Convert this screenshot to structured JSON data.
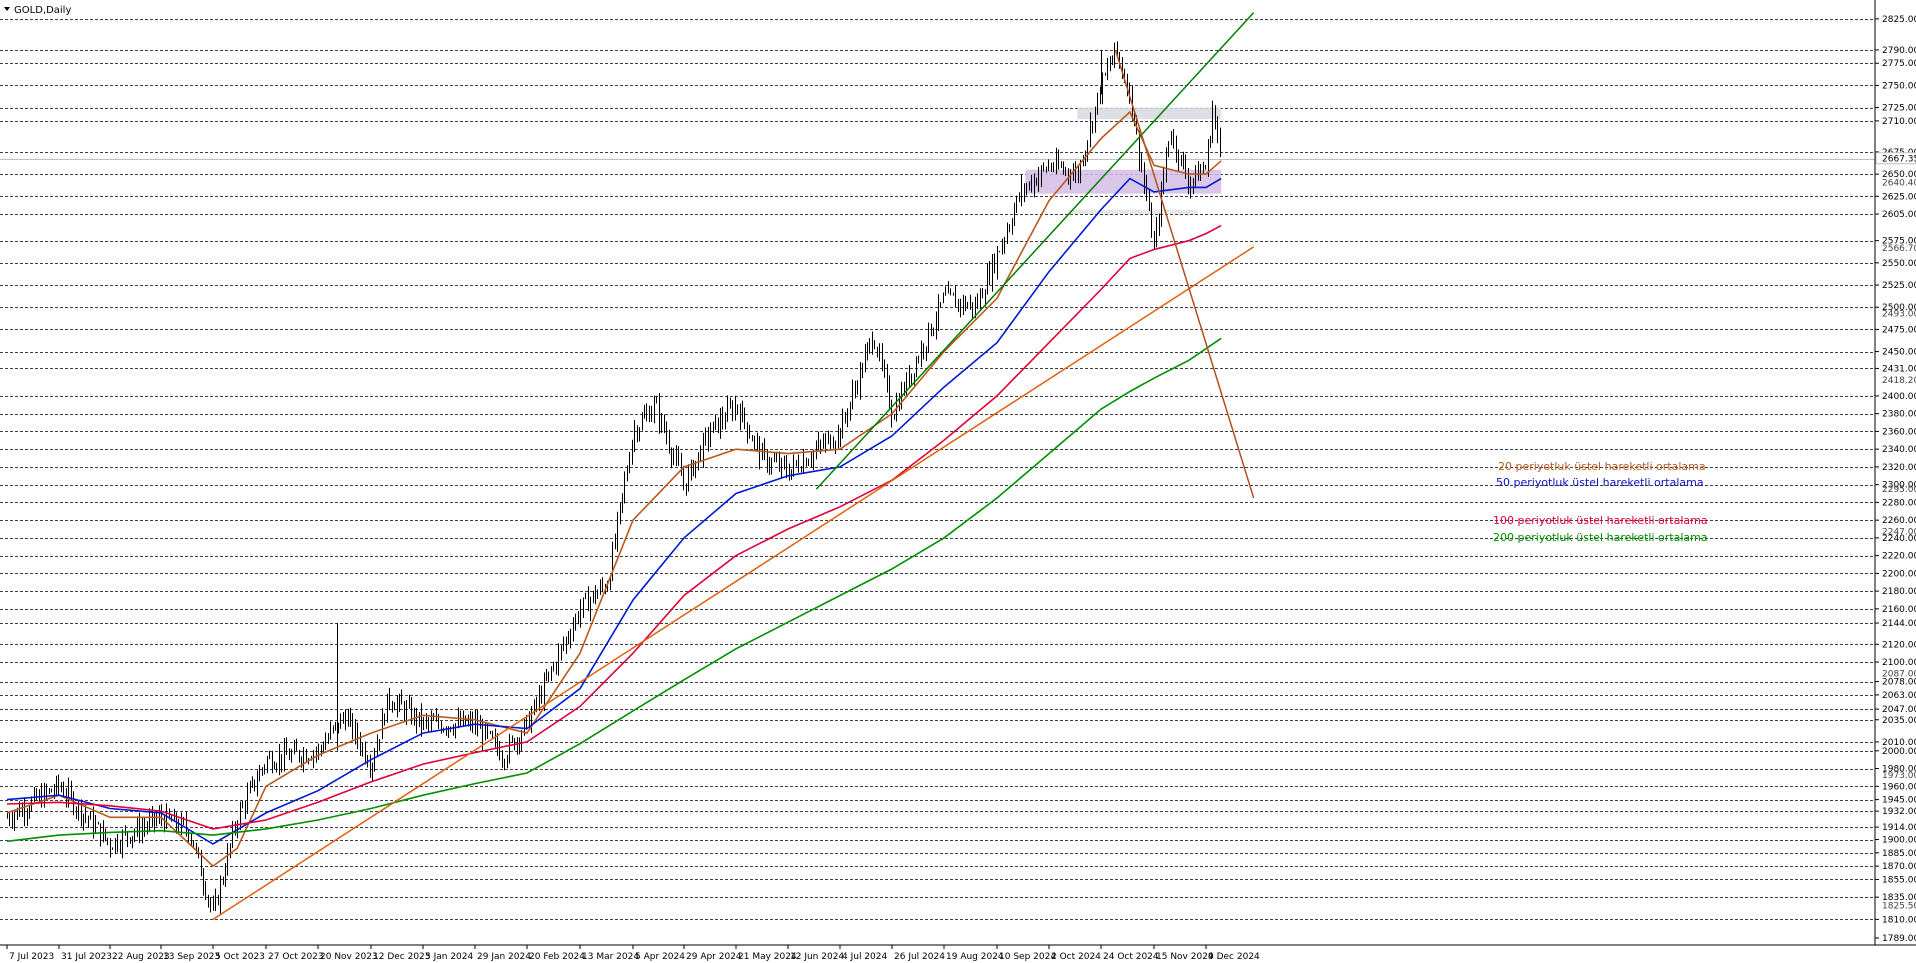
{
  "chart_data": {
    "type": "line",
    "title": "GOLD,Daily",
    "ylim": [
      1789,
      2835
    ],
    "grid": false,
    "y_levels": [
      2825,
      2790,
      2775,
      2750,
      2725,
      2710,
      2675,
      2650,
      2625,
      2605,
      2575,
      2550,
      2525,
      2500,
      2475,
      2450,
      2431,
      2400,
      2380,
      2360,
      2340,
      2320,
      2300,
      2280,
      2260,
      2240,
      2220,
      2200,
      2180,
      2160,
      2144,
      2120,
      2100,
      2078,
      2063,
      2047,
      2035,
      2010,
      2000,
      1980,
      1960,
      1945,
      1932,
      1914,
      1900,
      1885,
      1870,
      1855,
      1835,
      1810
    ],
    "y_ticks": [
      {
        "value": 2825,
        "label": "2825.00"
      },
      {
        "value": 2790,
        "label": "2790.00"
      },
      {
        "value": 2775,
        "label": "2775.00"
      },
      {
        "value": 2750,
        "label": "2750.00"
      },
      {
        "value": 2725,
        "label": "2725.00"
      },
      {
        "value": 2710,
        "label": "2710.00"
      },
      {
        "value": 2675,
        "label": "2675.00"
      },
      {
        "value": 2650,
        "label": "2650.00"
      },
      {
        "value": 2625,
        "label": "2625.00"
      },
      {
        "value": 2605,
        "label": "2605.00"
      },
      {
        "value": 2575,
        "label": "2575.00"
      },
      {
        "value": 2550,
        "label": "2550.00"
      },
      {
        "value": 2525,
        "label": "2525.00"
      },
      {
        "value": 2500,
        "label": "2500.00"
      },
      {
        "value": 2475,
        "label": "2475.00"
      },
      {
        "value": 2450,
        "label": "2450.00"
      },
      {
        "value": 2431,
        "label": "2431.00"
      },
      {
        "value": 2400,
        "label": "2400.00"
      },
      {
        "value": 2380,
        "label": "2380.00"
      },
      {
        "value": 2360,
        "label": "2360.00"
      },
      {
        "value": 2340,
        "label": "2340.00"
      },
      {
        "value": 2320,
        "label": "2320.00"
      },
      {
        "value": 2300,
        "label": "2300.00"
      },
      {
        "value": 2280,
        "label": "2280.00"
      },
      {
        "value": 2260,
        "label": "2260.00"
      },
      {
        "value": 2240,
        "label": "2240.00"
      },
      {
        "value": 2220,
        "label": "2220.00"
      },
      {
        "value": 2200,
        "label": "2200.00"
      },
      {
        "value": 2180,
        "label": "2180.00"
      },
      {
        "value": 2160,
        "label": "2160.00"
      },
      {
        "value": 2144,
        "label": "2144.00"
      },
      {
        "value": 2120,
        "label": "2120.00"
      },
      {
        "value": 2100,
        "label": "2100.00"
      },
      {
        "value": 2078,
        "label": "2078.00"
      },
      {
        "value": 2063,
        "label": "2063.00"
      },
      {
        "value": 2047,
        "label": "2047.00"
      },
      {
        "value": 2035,
        "label": "2035.00"
      },
      {
        "value": 2010,
        "label": "2010.00"
      },
      {
        "value": 2000,
        "label": "2000.00"
      },
      {
        "value": 1980,
        "label": "1980.00"
      },
      {
        "value": 1960,
        "label": "1960.00"
      },
      {
        "value": 1945,
        "label": "1945.00"
      },
      {
        "value": 1932,
        "label": "1932.00"
      },
      {
        "value": 1914,
        "label": "1914.00"
      },
      {
        "value": 1900,
        "label": "1900.00"
      },
      {
        "value": 1885,
        "label": "1885.00"
      },
      {
        "value": 1870,
        "label": "1870.00"
      },
      {
        "value": 1855,
        "label": "1855.00"
      },
      {
        "value": 1835,
        "label": "1835.00"
      },
      {
        "value": 1810,
        "label": "1810.00"
      },
      {
        "value": 1789,
        "label": "1789.00"
      }
    ],
    "y_small_labels": [
      {
        "value": 2667.35,
        "label": "2667.35"
      },
      {
        "value": 2640.4,
        "label": "2640.40"
      },
      {
        "value": 2566.7,
        "label": "2566.70"
      },
      {
        "value": 2493.0,
        "label": "2493.00"
      },
      {
        "value": 2418.2,
        "label": "2418.20"
      },
      {
        "value": 2295.0,
        "label": "2295.00"
      },
      {
        "value": 2247.0,
        "label": "2247.00"
      },
      {
        "value": 2087.0,
        "label": "2087.00"
      },
      {
        "value": 1973.0,
        "label": "1973.00"
      },
      {
        "value": 1825.5,
        "label": "1825.50"
      }
    ],
    "current_price": {
      "value": 2667.35,
      "label": "2667.35"
    },
    "x_ticks": [
      "7 Jul 2023",
      "31 Jul 2023",
      "22 Aug 2023",
      "13 Sep 2023",
      "5 Oct 2023",
      "27 Oct 2023",
      "20 Nov 2023",
      "12 Dec 2023",
      "5 Jan 2024",
      "29 Jan 2024",
      "20 Feb 2024",
      "13 Mar 2024",
      "5 Apr 2024",
      "29 Apr 2024",
      "21 May 2024",
      "12 Jun 2024",
      "4 Jul 2024",
      "26 Jul 2024",
      "19 Aug 2024",
      "10 Sep 2024",
      "2 Oct 2024",
      "24 Oct 2024",
      "15 Nov 2024",
      "9 Dec 2024"
    ],
    "price_path": [
      [
        "7 Jul 2023",
        1925
      ],
      [
        "31 Jul 2023",
        1960
      ],
      [
        "22 Aug 2023",
        1895
      ],
      [
        "13 Sep 2023",
        1925
      ],
      [
        "25 Sep 2023",
        1910
      ],
      [
        "5 Oct 2023",
        1815
      ],
      [
        "15 Oct 2023",
        1925
      ],
      [
        "27 Oct 2023",
        1990
      ],
      [
        "20 Nov 2023",
        2000
      ],
      [
        "1 Dec 2023",
        2040
      ],
      [
        "12 Dec 2023",
        1985
      ],
      [
        "20 Dec 2023",
        2060
      ],
      [
        "5 Jan 2024",
        2030
      ],
      [
        "29 Jan 2024",
        2030
      ],
      [
        "10 Feb 2024",
        1995
      ],
      [
        "20 Feb 2024",
        2030
      ],
      [
        "1 Mar 2024",
        2090
      ],
      [
        "13 Mar 2024",
        2160
      ],
      [
        "25 Mar 2024",
        2190
      ],
      [
        "5 Apr 2024",
        2360
      ],
      [
        "15 Apr 2024",
        2390
      ],
      [
        "29 Apr 2024",
        2300
      ],
      [
        "10 May 2024",
        2360
      ],
      [
        "21 May 2024",
        2390
      ],
      [
        "1 Jun 2024",
        2330
      ],
      [
        "12 Jun 2024",
        2315
      ],
      [
        "4 Jul 2024",
        2360
      ],
      [
        "18 Jul 2024",
        2470
      ],
      [
        "26 Jul 2024",
        2380
      ],
      [
        "19 Aug 2024",
        2510
      ],
      [
        "1 Sep 2024",
        2500
      ],
      [
        "10 Sep 2024",
        2560
      ],
      [
        "20 Sep 2024",
        2630
      ],
      [
        "2 Oct 2024",
        2660
      ],
      [
        "14 Oct 2024",
        2650
      ],
      [
        "24 Oct 2024",
        2750
      ],
      [
        "30 Oct 2024",
        2790
      ],
      [
        "5 Nov 2024",
        2740
      ],
      [
        "15 Nov 2024",
        2565
      ],
      [
        "22 Nov 2024",
        2700
      ],
      [
        "1 Dec 2024",
        2640
      ],
      [
        "9 Dec 2024",
        2660
      ],
      [
        "12 Dec 2024",
        2725
      ],
      [
        "16 Dec 2024",
        2660
      ]
    ],
    "series": [
      {
        "name": "20 periyotluk üstel hareketli ortalama",
        "color": "#b85a1e",
        "values": [
          [
            "7 Jul 2023",
            1930
          ],
          [
            "31 Jul 2023",
            1950
          ],
          [
            "22 Aug 2023",
            1925
          ],
          [
            "13 Sep 2023",
            1925
          ],
          [
            "5 Oct 2023",
            1870
          ],
          [
            "15 Oct 2023",
            1890
          ],
          [
            "27 Oct 2023",
            1960
          ],
          [
            "20 Nov 2023",
            1995
          ],
          [
            "12 Dec 2023",
            2020
          ],
          [
            "5 Jan 2024",
            2040
          ],
          [
            "29 Jan 2024",
            2035
          ],
          [
            "20 Feb 2024",
            2020
          ],
          [
            "13 Mar 2024",
            2110
          ],
          [
            "5 Apr 2024",
            2260
          ],
          [
            "29 Apr 2024",
            2320
          ],
          [
            "21 May 2024",
            2340
          ],
          [
            "12 Jun 2024",
            2335
          ],
          [
            "4 Jul 2024",
            2340
          ],
          [
            "26 Jul 2024",
            2380
          ],
          [
            "19 Aug 2024",
            2450
          ],
          [
            "10 Sep 2024",
            2510
          ],
          [
            "2 Oct 2024",
            2620
          ],
          [
            "24 Oct 2024",
            2690
          ],
          [
            "5 Nov 2024",
            2720
          ],
          [
            "15 Nov 2024",
            2660
          ],
          [
            "1 Dec 2024",
            2650
          ],
          [
            "9 Dec 2024",
            2650
          ],
          [
            "16 Dec 2024",
            2665
          ]
        ]
      },
      {
        "name": "50 periyotluk üstel hareketli ortalama",
        "color": "#0018d8",
        "values": [
          [
            "7 Jul 2023",
            1945
          ],
          [
            "31 Jul 2023",
            1950
          ],
          [
            "22 Aug 2023",
            1935
          ],
          [
            "13 Sep 2023",
            1930
          ],
          [
            "5 Oct 2023",
            1895
          ],
          [
            "27 Oct 2023",
            1930
          ],
          [
            "20 Nov 2023",
            1955
          ],
          [
            "12 Dec 2023",
            1990
          ],
          [
            "5 Jan 2024",
            2020
          ],
          [
            "29 Jan 2024",
            2030
          ],
          [
            "20 Feb 2024",
            2025
          ],
          [
            "13 Mar 2024",
            2070
          ],
          [
            "5 Apr 2024",
            2170
          ],
          [
            "29 Apr 2024",
            2240
          ],
          [
            "21 May 2024",
            2290
          ],
          [
            "12 Jun 2024",
            2310
          ],
          [
            "4 Jul 2024",
            2320
          ],
          [
            "26 Jul 2024",
            2355
          ],
          [
            "19 Aug 2024",
            2410
          ],
          [
            "10 Sep 2024",
            2460
          ],
          [
            "2 Oct 2024",
            2540
          ],
          [
            "24 Oct 2024",
            2610
          ],
          [
            "5 Nov 2024",
            2645
          ],
          [
            "15 Nov 2024",
            2630
          ],
          [
            "1 Dec 2024",
            2635
          ],
          [
            "9 Dec 2024",
            2635
          ],
          [
            "16 Dec 2024",
            2645
          ]
        ]
      },
      {
        "name": "100 periyotluk üstel hareketli ortalama",
        "color": "#e00038",
        "values": [
          [
            "7 Jul 2023",
            1940
          ],
          [
            "31 Jul 2023",
            1942
          ],
          [
            "22 Aug 2023",
            1938
          ],
          [
            "13 Sep 2023",
            1932
          ],
          [
            "5 Oct 2023",
            1912
          ],
          [
            "27 Oct 2023",
            1922
          ],
          [
            "20 Nov 2023",
            1942
          ],
          [
            "12 Dec 2023",
            1965
          ],
          [
            "5 Jan 2024",
            1985
          ],
          [
            "29 Jan 2024",
            1998
          ],
          [
            "20 Feb 2024",
            2010
          ],
          [
            "13 Mar 2024",
            2050
          ],
          [
            "5 Apr 2024",
            2110
          ],
          [
            "29 Apr 2024",
            2175
          ],
          [
            "21 May 2024",
            2220
          ],
          [
            "12 Jun 2024",
            2250
          ],
          [
            "4 Jul 2024",
            2275
          ],
          [
            "26 Jul 2024",
            2305
          ],
          [
            "19 Aug 2024",
            2350
          ],
          [
            "10 Sep 2024",
            2400
          ],
          [
            "2 Oct 2024",
            2460
          ],
          [
            "24 Oct 2024",
            2520
          ],
          [
            "5 Nov 2024",
            2555
          ],
          [
            "15 Nov 2024",
            2565
          ],
          [
            "1 Dec 2024",
            2575
          ],
          [
            "9 Dec 2024",
            2583
          ],
          [
            "16 Dec 2024",
            2592
          ]
        ]
      },
      {
        "name": "200 periyotluk üstel hareketli ortalama",
        "color": "#009000",
        "values": [
          [
            "7 Jul 2023",
            1898
          ],
          [
            "31 Jul 2023",
            1905
          ],
          [
            "22 Aug 2023",
            1908
          ],
          [
            "13 Sep 2023",
            1910
          ],
          [
            "5 Oct 2023",
            1905
          ],
          [
            "27 Oct 2023",
            1912
          ],
          [
            "20 Nov 2023",
            1922
          ],
          [
            "12 Dec 2023",
            1935
          ],
          [
            "5 Jan 2024",
            1950
          ],
          [
            "29 Jan 2024",
            1963
          ],
          [
            "20 Feb 2024",
            1975
          ],
          [
            "13 Mar 2024",
            2008
          ],
          [
            "5 Apr 2024",
            2045
          ],
          [
            "29 Apr 2024",
            2080
          ],
          [
            "21 May 2024",
            2115
          ],
          [
            "12 Jun 2024",
            2145
          ],
          [
            "4 Jul 2024",
            2175
          ],
          [
            "26 Jul 2024",
            2205
          ],
          [
            "19 Aug 2024",
            2240
          ],
          [
            "10 Sep 2024",
            2285
          ],
          [
            "2 Oct 2024",
            2335
          ],
          [
            "24 Oct 2024",
            2385
          ],
          [
            "5 Nov 2024",
            2405
          ],
          [
            "15 Nov 2024",
            2420
          ],
          [
            "1 Dec 2024",
            2440
          ],
          [
            "16 Dec 2024",
            2465
          ]
        ]
      }
    ],
    "trendlines": [
      {
        "name": "long-term-support-trendline",
        "color": "#e06010",
        "from": [
          "5 Oct 2023",
          1810
        ],
        "to": [
          "31 Dec 2024",
          2568
        ]
      },
      {
        "name": "medium-term-support-trendline",
        "color": "#008000",
        "from": [
          "24 Jun 2024",
          2295
        ],
        "to": [
          "31 Dec 2024",
          2832
        ]
      },
      {
        "name": "downtrend-resistance-line",
        "color": "#b05020",
        "from": [
          "30 Oct 2024",
          2790
        ],
        "to": [
          "31 Dec 2024",
          2285
        ]
      }
    ],
    "zones": [
      {
        "name": "resistance-zone",
        "color": "#d8d8e0",
        "from": [
          "14 Oct 2024",
          2712
        ],
        "to": [
          "16 Dec 2024",
          2725
        ]
      },
      {
        "name": "pivot-zone",
        "color": "#d4bce4",
        "from": [
          "22 Sep 2024",
          2628
        ],
        "to": [
          "16 Dec 2024",
          2655
        ]
      },
      {
        "name": "support-zone",
        "color": "#e4e4e4",
        "from": [
          "10 Oct 2024",
          2605
        ],
        "to": [
          "5 Dec 2024",
          2610
        ]
      }
    ],
    "legend": [
      {
        "label": "20 periyotluk üstel hareketli ortalama",
        "color": "#b85a1e"
      },
      {
        "label": "50 periyotluk üstel hareketli ortalama",
        "color": "#1010c0"
      },
      {
        "label": "100 periyotluk üstel hareketli ortalama",
        "color": "#e00038"
      },
      {
        "label": "200 periyotluk üstel hareketli ortalama",
        "color": "#009000"
      }
    ],
    "legend_placement": "right-center"
  }
}
